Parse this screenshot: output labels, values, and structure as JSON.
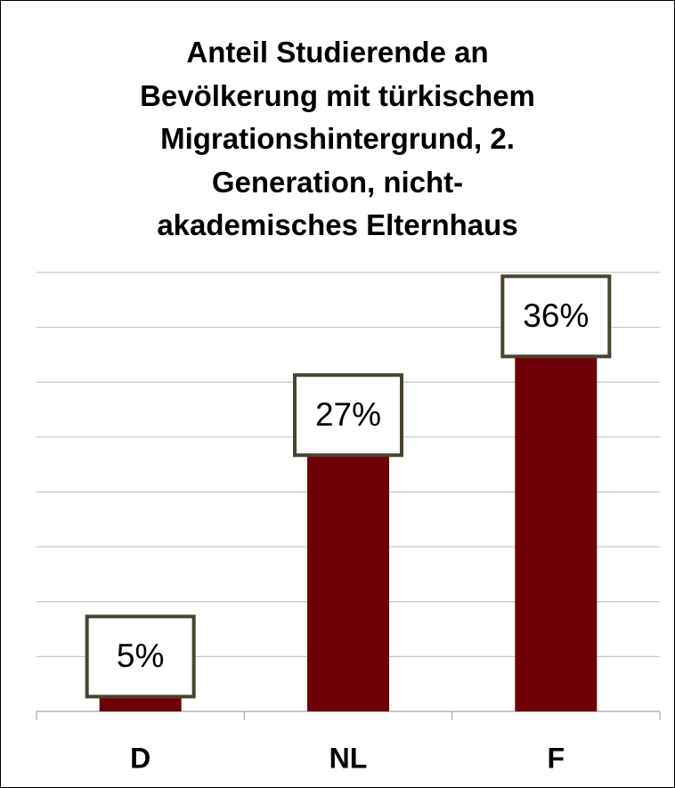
{
  "chart_data": {
    "type": "bar",
    "title": "Anteil Studierende an\nBevölkerung mit türkischem\nMigrationshintergrund, 2.\nGeneration, nicht-\nakademisches Elternhaus",
    "categories": [
      "D",
      "NL",
      "F"
    ],
    "values": [
      5,
      27,
      36
    ],
    "value_labels": [
      "5%",
      "27%",
      "36%"
    ],
    "color": "#6e0008",
    "ylim": [
      0,
      40
    ],
    "yticks": [
      0,
      5,
      10,
      15,
      20,
      25,
      30,
      35,
      40
    ],
    "grid": true
  }
}
